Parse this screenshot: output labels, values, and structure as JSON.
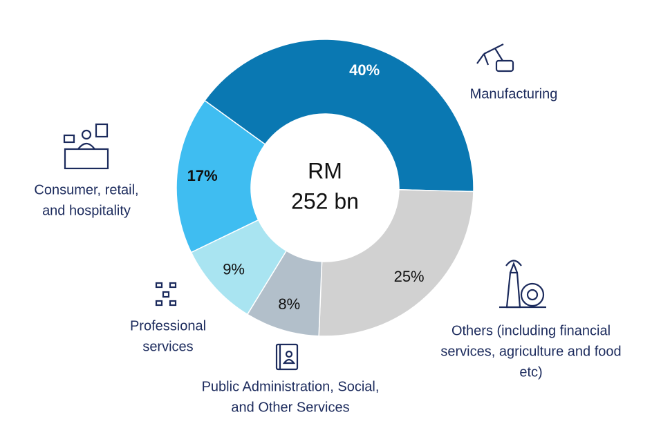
{
  "chart_data": {
    "type": "donut",
    "center_lines": [
      "RM",
      "252 bn"
    ],
    "categories": [
      [
        "Manufacturing"
      ],
      [
        "Others (including financial",
        "services, agriculture and food",
        "etc)"
      ],
      [
        "Public Administration, Social,",
        "and Other Services"
      ],
      [
        "Professional",
        "services"
      ],
      [
        "Consumer, retail,",
        "and hospitality"
      ]
    ],
    "values": [
      40,
      25,
      8,
      9,
      17
    ],
    "value_labels": [
      "40%",
      "25%",
      "8%",
      "9%",
      "17%"
    ],
    "colors": [
      "#0a78b2",
      "#d1d1d1",
      "#b2bfca",
      "#a9e4f1",
      "#3fbdf1"
    ]
  }
}
